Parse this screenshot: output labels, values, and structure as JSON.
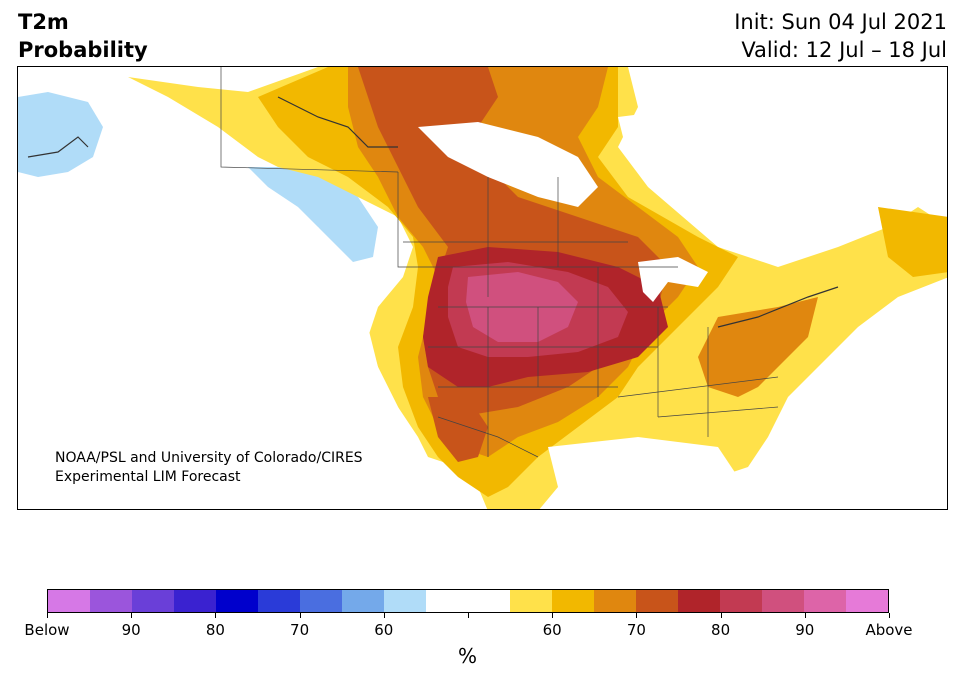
{
  "title": {
    "left_line1": "T2m",
    "left_line2": "Probability",
    "right_line1": "Init: Sun 04 Jul 2021",
    "right_line2": "Valid: 12 Jul – 18 Jul"
  },
  "credit": {
    "line1": "NOAA/PSL and University of Colorado/CIRES",
    "line2": "Experimental LIM Forecast"
  },
  "colorbar": {
    "colors": [
      "#d678e6",
      "#9b55dc",
      "#6a3fd8",
      "#3a22d0",
      "#0000cc",
      "#2a3bd8",
      "#4a6ee0",
      "#74a9ea",
      "#b0dcf8",
      "#ffffff",
      "#ffffff",
      "#ffe14a",
      "#f2b800",
      "#e0870f",
      "#c8541a",
      "#b0242a",
      "#c23a52",
      "#d0507e",
      "#dd64a8",
      "#e67ad8"
    ],
    "labels": [
      "Below",
      "90",
      "80",
      "70",
      "60",
      "",
      "60",
      "70",
      "80",
      "90",
      "Above"
    ],
    "unit": "%"
  }
}
